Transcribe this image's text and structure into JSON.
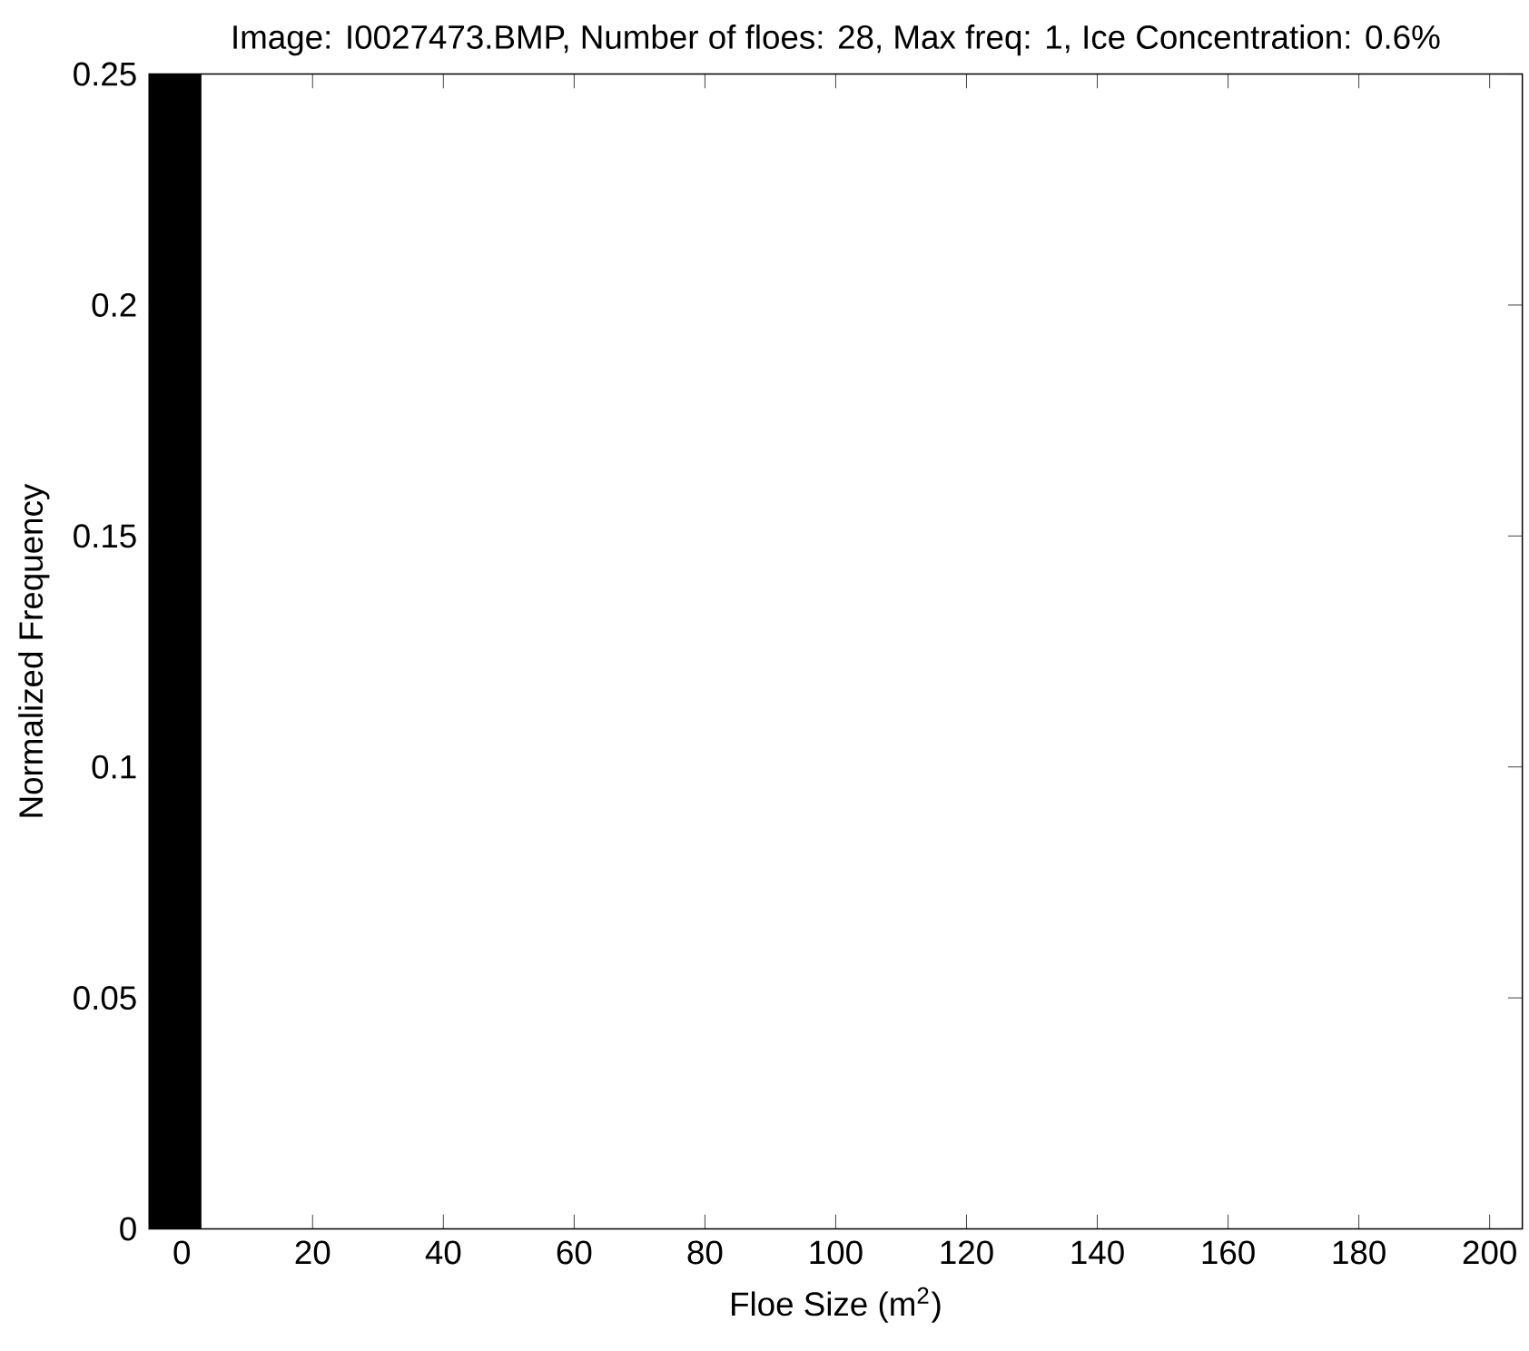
{
  "chart_data": {
    "type": "histogram",
    "title": "Image: I0027473.BMP, Number of floes: 28, Max freq: 1, Ice Concentration: 0.6%",
    "xlabel": "Floe Size (m$^{2}$)",
    "ylabel": "Normalized Frequency",
    "bins": [
      -5,
      3
    ],
    "values": [
      0.25
    ],
    "color": "#000000",
    "xlim": [
      -5,
      205
    ],
    "ylim": [
      0,
      0.25
    ],
    "xticks": [
      0,
      20,
      40,
      60,
      80,
      100,
      120,
      140,
      160,
      180,
      200
    ],
    "yticks": [
      0,
      0.05,
      0.1,
      0.15,
      0.2,
      0.25
    ],
    "grid": false
  }
}
